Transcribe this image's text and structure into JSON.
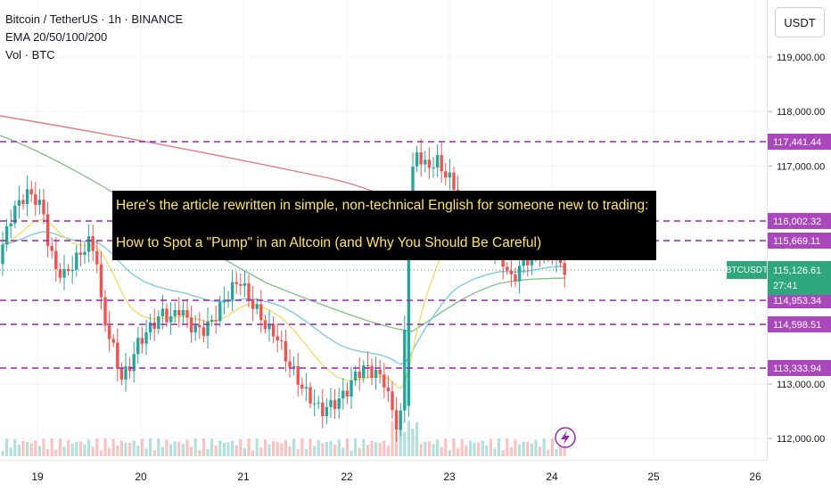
{
  "header": {
    "symbol_line": "Bitcoin / TetherUS · 1h · BINANCE",
    "ema_line": "EMA 20/50/100/200",
    "vol_line": "Vol · BTC"
  },
  "price_axis": {
    "currency_label": "USDT",
    "ticks": [
      "119,000.00",
      "118,000.00",
      "117,000.00",
      "113,000.00",
      "112,000.00"
    ]
  },
  "time_axis": {
    "labels": [
      "19",
      "20",
      "21",
      "22",
      "23",
      "24",
      "25",
      "26"
    ]
  },
  "overlay": {
    "line1": "Here's the article rewritten in simple, non-technical English for someone new to trading:",
    "line2": "How to Spot a \"Pump\" in an Altcoin (and Why You Should Be Careful)"
  },
  "level_lines": [
    {
      "label": "117,441.44",
      "color": "#9c27b0"
    },
    {
      "label": "116,002.32",
      "color": "#9c27b0"
    },
    {
      "label": "115,669.11",
      "color": "#9c27b0"
    },
    {
      "label": "114,953.34",
      "color": "#9c27b0"
    },
    {
      "label": "114,598.51",
      "color": "#9c27b0"
    },
    {
      "label": "113,333.94",
      "color": "#9c27b0"
    }
  ],
  "current_price": {
    "symbol": "BTCUSDT",
    "price": "115,126.61",
    "countdown": "27:41",
    "color": "#2fa77c"
  },
  "ema_colors": {
    "ema20": "#f3dc6b",
    "ema50": "#7fc9e8",
    "ema100": "#84c08a",
    "ema200": "#e57a82"
  },
  "icons": {
    "alert": "lightning-icon"
  },
  "colors": {
    "up": "#26a69a",
    "down": "#ef5350",
    "level": "#9c27b0"
  }
}
